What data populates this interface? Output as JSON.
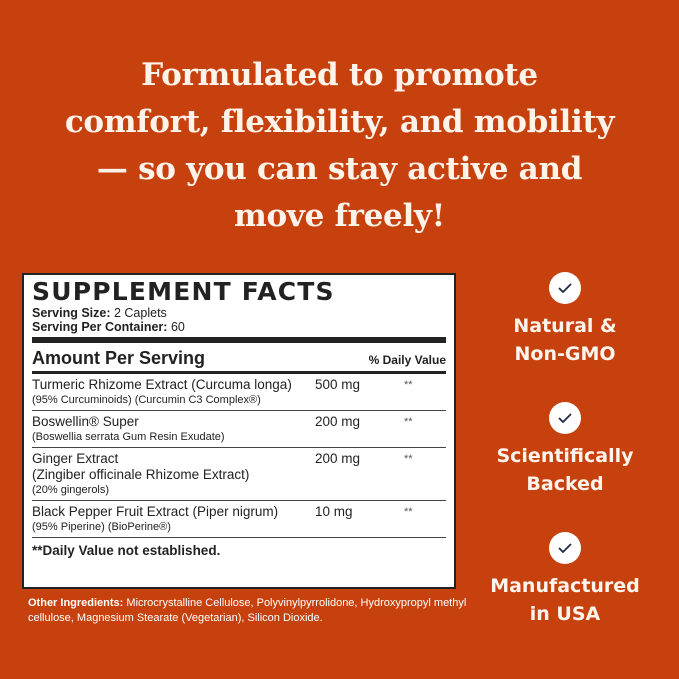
{
  "headline": [
    "Formulated to promote",
    "comfort, flexibility, and mobility",
    "— so you can stay active and",
    "move freely!"
  ],
  "facts": {
    "title": "SUPPLEMENT FACTS",
    "serving_size_label": "Serving Size:",
    "serving_size": "2 Caplets",
    "servings_label": "Serving Per Container:",
    "servings": "60",
    "amount_header": "Amount Per Serving",
    "dv_header": "% Daily Value",
    "rows": [
      {
        "name": "Turmeric Rhizome Extract (Curcuma longa)",
        "sub": "(95% Curcuminoids) (Curcumin C3 Complex®)",
        "amount": "500 mg",
        "dv": "**"
      },
      {
        "name": "Boswellin® Super",
        "sub": "(Boswellia serrata Gum Resin Exudate)",
        "amount": "200 mg",
        "dv": "**"
      },
      {
        "name": "Ginger Extract",
        "name2": "(Zingiber officinale Rhizome Extract)",
        "sub": "(20% gingerols)",
        "amount": "200 mg",
        "dv": "**"
      },
      {
        "name": "Black Pepper Fruit Extract (Piper nigrum)",
        "sub": "(95% Piperine) (BioPerine®)",
        "amount": "10 mg",
        "dv": "**"
      }
    ],
    "note": "**Daily Value not established."
  },
  "other": {
    "label": "Other Ingredients:",
    "text": " Microcrystalline Cellulose, Polyvinylpyrrolidone, Hydroxypropyl methyl cellulose, Magnesium Stearate (Vegetarian), Silicon Dioxide."
  },
  "badges": [
    {
      "icon": "check-icon",
      "line1": "Natural &",
      "line2": "Non-GMO"
    },
    {
      "icon": "check-icon",
      "line1": "Scientifically",
      "line2": "Backed"
    },
    {
      "icon": "check-icon",
      "line1": "Manufactured",
      "line2": "in USA"
    }
  ],
  "colors": {
    "background": "#c7410f",
    "check": "#1f2a44"
  }
}
